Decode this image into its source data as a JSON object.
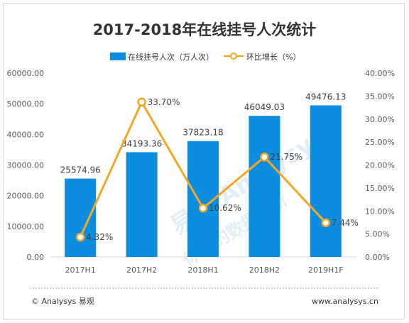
{
  "chart_data": {
    "type": "bar",
    "title": "2017-2018年在线挂号人次统计",
    "categories": [
      "2017H1",
      "2017H2",
      "2018H1",
      "2018H2",
      "2019H1F"
    ],
    "series": [
      {
        "name": "在线挂号人次（万人次）",
        "type": "bar",
        "axis": "left",
        "color": "#0b8ee0",
        "values": [
          25574.96,
          34193.36,
          37823.18,
          46049.03,
          49476.13
        ],
        "labels": [
          "25574.96",
          "34193.36",
          "37823.18",
          "46049.03",
          "49476.13"
        ]
      },
      {
        "name": "环比增长（%）",
        "type": "line",
        "axis": "right",
        "color": "#f5a623",
        "values": [
          4.32,
          33.7,
          10.62,
          21.75,
          7.44
        ],
        "labels": [
          "4.32%",
          "33.70%",
          "10.62%",
          "21.75%",
          "7.44%"
        ]
      }
    ],
    "y_left": {
      "range": [
        0,
        60000
      ],
      "ticks": [
        "0.00",
        "10000.00",
        "20000.00",
        "30000.00",
        "40000.00",
        "50000.00",
        "60000.00"
      ]
    },
    "y_right": {
      "range": [
        0,
        40
      ],
      "ticks": [
        "0.00%",
        "5.00%",
        "10.00%",
        "15.00%",
        "20.00%",
        "25.00%",
        "30.00%",
        "35.00%",
        "40.00%"
      ]
    },
    "grid": false,
    "legend_position": "top"
  },
  "footer": {
    "source": "© Analysys 易观",
    "website": "www.analysys.cn"
  },
  "watermark": {
    "text": "易观 Analysys",
    "slogan": "你要的数据分析"
  }
}
